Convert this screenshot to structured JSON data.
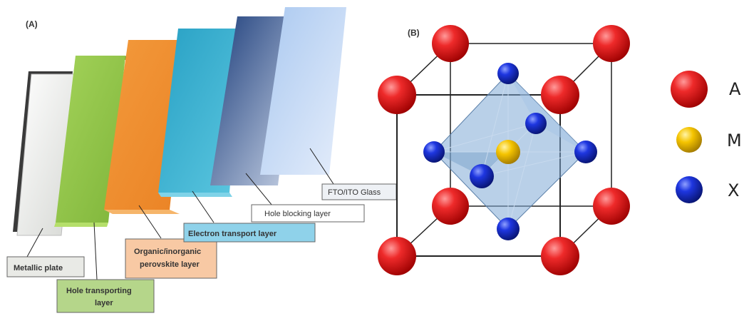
{
  "panel_a": {
    "label": "(A)",
    "layers": [
      {
        "name": "Metallic plate",
        "color": "#e9ebe8"
      },
      {
        "name": "Hole transporting layer",
        "color": "#8cc240"
      },
      {
        "name": "Organic/inorganic perovskite layer",
        "color": "#f08e2c"
      },
      {
        "name": "Electron transport layer",
        "color": "#2fa9c9"
      },
      {
        "name": "Hole blocking layer",
        "color": "#2a4f8e"
      },
      {
        "name": "FTO/ITO Glass",
        "color": "#c7dbf4"
      }
    ],
    "callouts": {
      "metallic": "Metallic plate",
      "htl_line1": "Hole transporting",
      "htl_line2": "layer",
      "perov_line1": "Organic/inorganic",
      "perov_line2": "perovskite layer",
      "etl": "Electron transport layer",
      "hbl": "Hole blocking layer",
      "fto": "FTO/ITO Glass"
    }
  },
  "panel_b": {
    "label": "(B)",
    "legend": [
      {
        "symbol": "A",
        "color": "#e01818",
        "icon": "red-sphere"
      },
      {
        "symbol": "M",
        "color": "#f2c200",
        "icon": "yellow-sphere"
      },
      {
        "symbol": "X",
        "color": "#1530d0",
        "icon": "blue-sphere"
      }
    ]
  }
}
